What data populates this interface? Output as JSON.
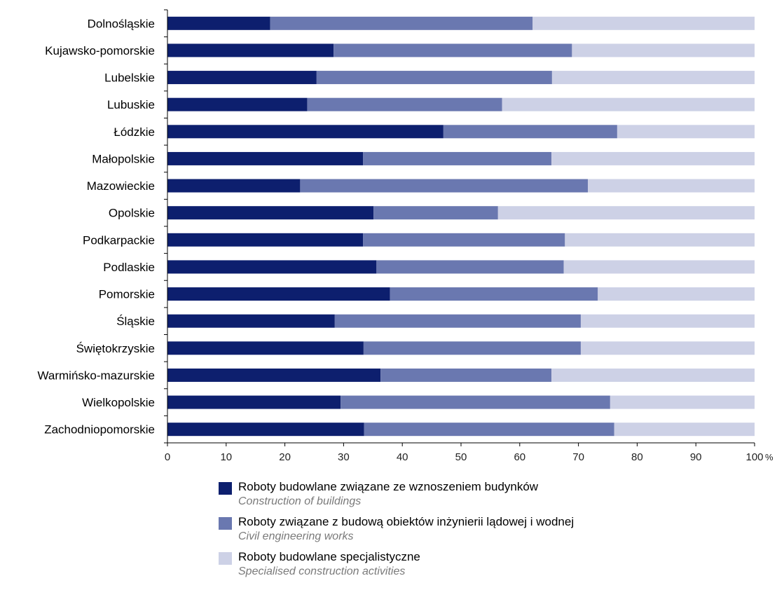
{
  "chart_data": {
    "type": "bar",
    "orientation": "horizontal",
    "stacked": true,
    "categories": [
      "Dolnośląskie",
      "Kujawsko-pomorskie",
      "Lubelskie",
      "Lubuskie",
      "Łódzkie",
      "Małopolskie",
      "Mazowieckie",
      "Opolskie",
      "Podkarpackie",
      "Podlaskie",
      "Pomorskie",
      "Śląskie",
      "Świętokrzyskie",
      "Warmińsko-mazurskie",
      "Wielkopolskie",
      "Zachodniopomorskie"
    ],
    "series": [
      {
        "name": "Roboty budowlane związane ze wznoszeniem budynków",
        "name_en": "Construction of buildings",
        "color": "#0d1f6e",
        "values": [
          17.5,
          28.3,
          25.4,
          23.8,
          47.0,
          33.3,
          22.6,
          35.1,
          33.3,
          35.6,
          37.9,
          28.5,
          33.4,
          36.3,
          29.5,
          33.5
        ]
      },
      {
        "name": "Roboty związane z budową obiektów inżynierii lądowej i wodnej",
        "name_en": "Civil engineering works",
        "color": "#6a78b0",
        "values": [
          44.7,
          40.6,
          40.1,
          33.2,
          29.6,
          32.1,
          49.0,
          21.2,
          34.4,
          31.9,
          35.4,
          41.9,
          37.0,
          29.1,
          45.9,
          42.6
        ]
      },
      {
        "name": "Roboty budowlane specjalistyczne",
        "name_en": "Specialised construction activities",
        "color": "#cdd1e6",
        "values": [
          37.8,
          31.1,
          34.5,
          43.0,
          23.4,
          34.6,
          28.4,
          43.7,
          32.3,
          32.5,
          26.7,
          29.6,
          29.6,
          34.6,
          24.6,
          23.9
        ]
      }
    ],
    "xlim": [
      0,
      100
    ],
    "xticks": [
      0,
      10,
      20,
      30,
      40,
      50,
      60,
      70,
      80,
      90,
      100
    ],
    "x_unit": "%",
    "grid": false,
    "legend_position": "bottom"
  }
}
